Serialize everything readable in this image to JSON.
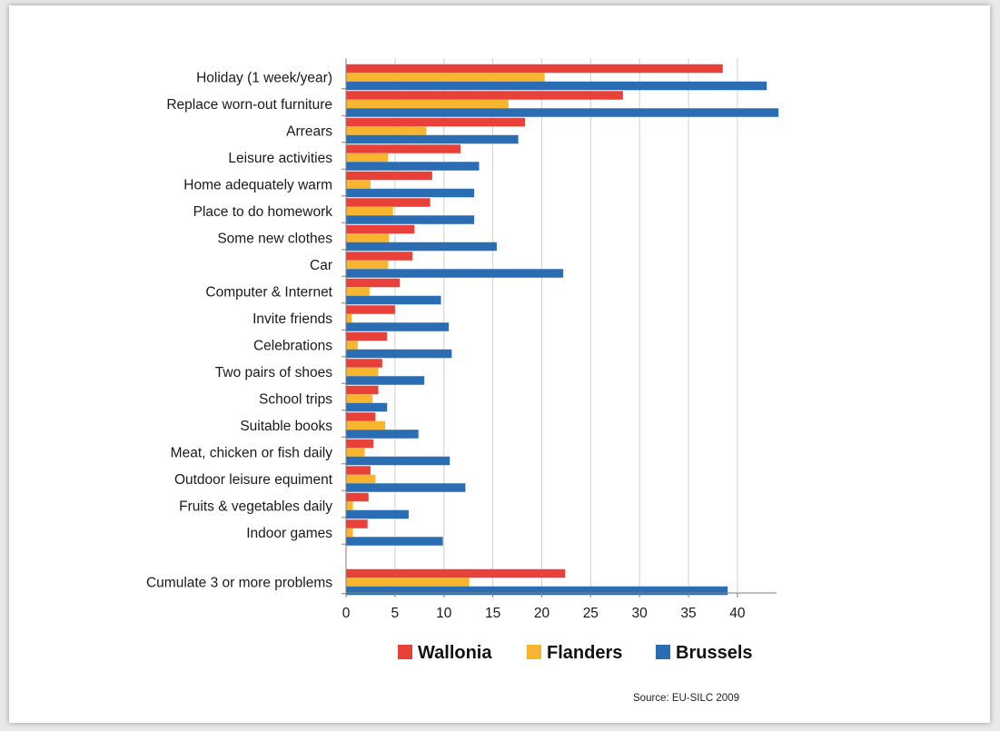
{
  "chart_data": {
    "type": "bar",
    "orientation": "horizontal",
    "categories": [
      "Holiday (1 week/year)",
      "Replace worn-out furniture",
      "Arrears",
      "Leisure activities",
      "Home adequately warm",
      "Place to do homework",
      "Some new clothes",
      "Car",
      "Computer & Internet",
      "Invite friends",
      "Celebrations",
      "Two pairs of shoes",
      "School trips",
      "Suitable books",
      "Meat, chicken or fish daily",
      "Outdoor leisure equiment",
      "Fruits & vegetables daily",
      "Indoor games",
      "",
      "Cumulate 3 or more problems"
    ],
    "series": [
      {
        "name": "Wallonia",
        "color": "#e8413a",
        "values": [
          38.5,
          28.3,
          18.3,
          11.7,
          8.8,
          8.6,
          7.0,
          6.8,
          5.5,
          5.0,
          4.2,
          3.7,
          3.3,
          3.0,
          2.8,
          2.5,
          2.3,
          2.2,
          null,
          22.4
        ]
      },
      {
        "name": "Flanders",
        "color": "#f8b630",
        "values": [
          20.3,
          16.6,
          8.2,
          4.3,
          2.5,
          4.8,
          4.4,
          4.3,
          2.4,
          0.6,
          1.2,
          3.3,
          2.7,
          4.0,
          1.9,
          3.0,
          0.7,
          0.7,
          null,
          12.6
        ]
      },
      {
        "name": "Brussels",
        "color": "#2a6db3",
        "values": [
          43.0,
          44.2,
          17.6,
          13.6,
          13.1,
          13.1,
          15.4,
          22.2,
          9.7,
          10.5,
          10.8,
          8.0,
          4.2,
          7.4,
          10.6,
          12.2,
          6.4,
          9.9,
          null,
          39.0
        ]
      }
    ],
    "xticks": [
      0,
      5,
      10,
      15,
      20,
      25,
      30,
      35,
      40
    ],
    "xlim": [
      0,
      44
    ],
    "grid": true,
    "legend_position": "bottom",
    "title": "",
    "xlabel": "",
    "ylabel": "",
    "source": "Source: EU-SILC 2009"
  }
}
